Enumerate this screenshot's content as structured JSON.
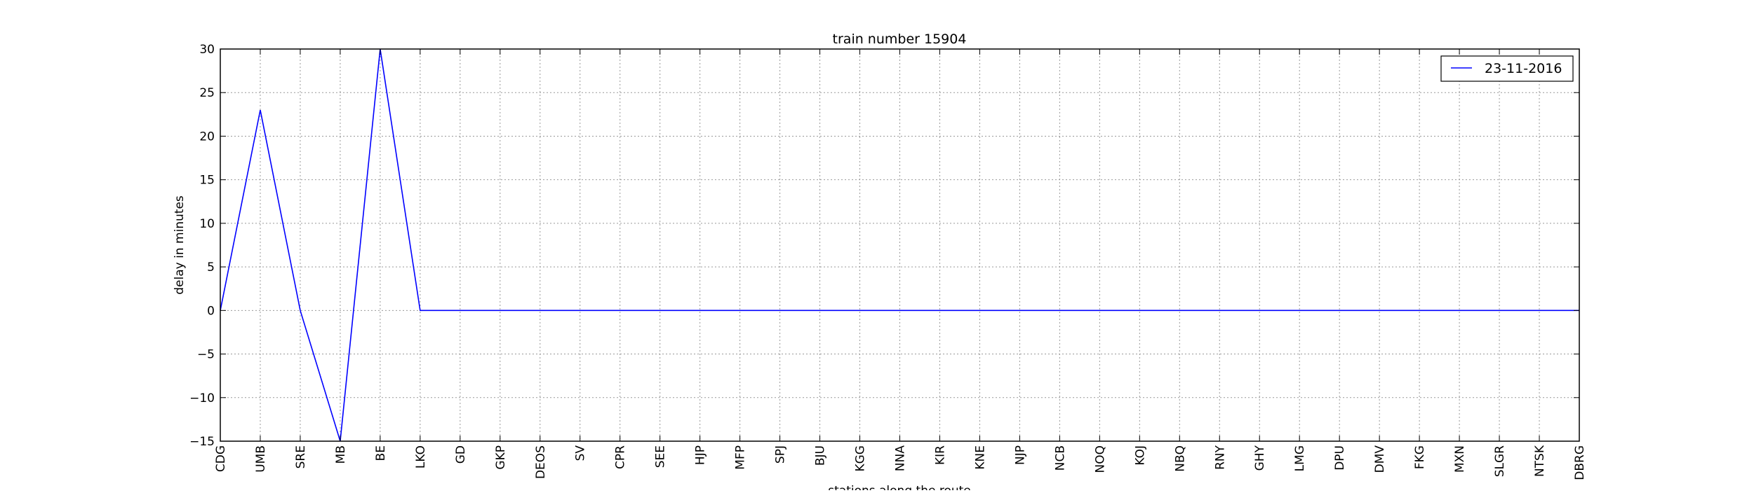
{
  "chart_data": {
    "type": "line",
    "title": "train number 15904",
    "xlabel": "stations along the route",
    "ylabel": "delay in minutes",
    "categories": [
      "CDG",
      "UMB",
      "SRE",
      "MB",
      "BE",
      "LKO",
      "GD",
      "GKP",
      "DEOS",
      "SV",
      "CPR",
      "SEE",
      "HJP",
      "MFP",
      "SPJ",
      "BJU",
      "KGG",
      "NNA",
      "KIR",
      "KNE",
      "NJP",
      "NCB",
      "NOQ",
      "KOJ",
      "NBQ",
      "RNY",
      "GHY",
      "LMG",
      "DPU",
      "DMV",
      "FKG",
      "MXN",
      "SLGR",
      "NTSK",
      "DBRG"
    ],
    "series": [
      {
        "name": "23-11-2016",
        "color": "#0000ff",
        "values": [
          0,
          23,
          0,
          -15,
          30,
          0,
          0,
          0,
          0,
          0,
          0,
          0,
          0,
          0,
          0,
          0,
          0,
          0,
          0,
          0,
          0,
          0,
          0,
          0,
          0,
          0,
          0,
          0,
          0,
          0,
          0,
          0,
          0,
          0,
          0
        ]
      }
    ],
    "ylim": [
      -15,
      30
    ],
    "yticks": [
      30,
      25,
      20,
      15,
      10,
      5,
      0,
      -5,
      -10,
      -15
    ],
    "ytick_labels": [
      "30",
      "25",
      "20",
      "15",
      "10",
      "5",
      "0",
      "−5",
      "−10",
      "−15"
    ],
    "grid": true,
    "legend_position": "top-right"
  }
}
